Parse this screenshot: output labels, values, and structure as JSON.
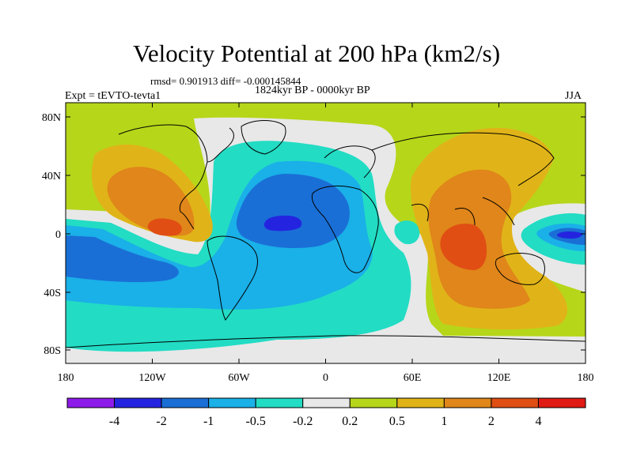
{
  "title": "Velocity Potential at 200 hPa (km2/s)",
  "stats": {
    "rmsd_label": "rmsd=",
    "rmsd_value": "0.901913",
    "diff_label": "diff=",
    "diff_value": "-0.000145844"
  },
  "period": "1824kyr BP - 0000kyr BP",
  "experiment": "Expt = tEVTO-tevta1",
  "season": "JJA",
  "map": {
    "x_ticks": [
      "180",
      "120W",
      "60W",
      "0",
      "60E",
      "120E",
      "180"
    ],
    "y_ticks": [
      "80N",
      "40N",
      "0",
      "40S",
      "80S"
    ]
  },
  "colorbar": {
    "labels": [
      "-4",
      "-2",
      "-1",
      "-0.5",
      "-0.2",
      "0.2",
      "0.5",
      "1",
      "2",
      "4"
    ],
    "colors": [
      "#8e1bea",
      "#2424e0",
      "#1a6fd6",
      "#1ab0e8",
      "#22dcc4",
      "#e8e8e8",
      "#b6d61a",
      "#e0b418",
      "#e0861a",
      "#e04e14",
      "#e01a14"
    ]
  }
}
